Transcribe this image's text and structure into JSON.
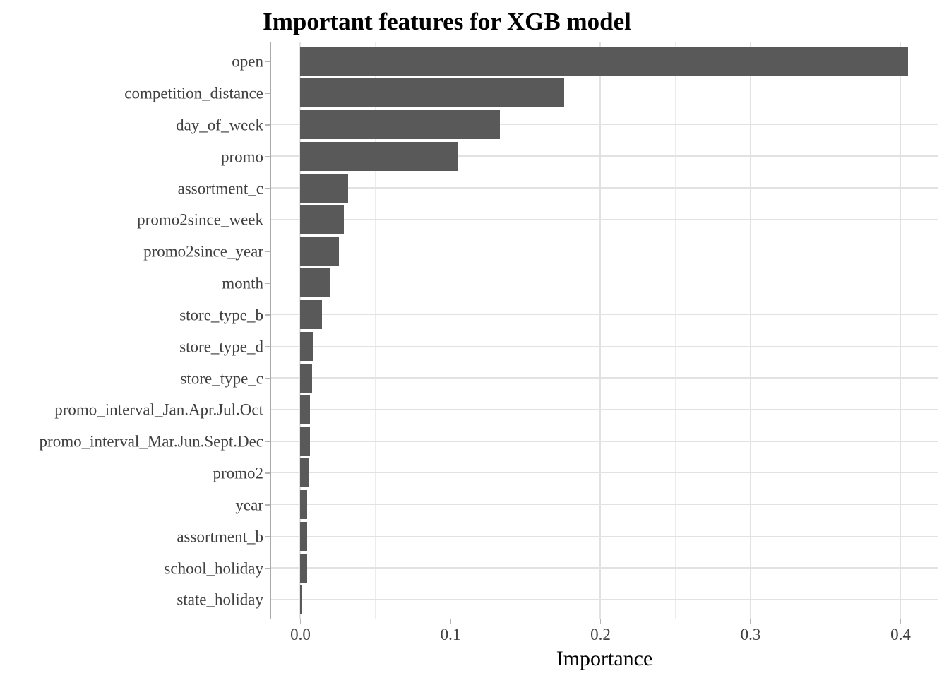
{
  "chart_data": {
    "type": "bar",
    "orientation": "horizontal",
    "title": "Important features for XGB model",
    "xlabel": "Importance",
    "ylabel": "",
    "categories": [
      "open",
      "competition_distance",
      "day_of_week",
      "promo",
      "assortment_c",
      "promo2since_week",
      "promo2since_year",
      "month",
      "store_type_b",
      "store_type_d",
      "store_type_c",
      "promo_interval_Jan.Apr.Jul.Oct",
      "promo_interval_Mar.Jun.Sept.Dec",
      "promo2",
      "year",
      "assortment_b",
      "school_holiday",
      "state_holiday"
    ],
    "values": [
      0.405,
      0.176,
      0.133,
      0.105,
      0.032,
      0.029,
      0.026,
      0.02,
      0.0145,
      0.0087,
      0.0078,
      0.0064,
      0.0064,
      0.0059,
      0.0049,
      0.0046,
      0.0045,
      0.0016
    ],
    "x_ticks": [
      0.0,
      0.1,
      0.2,
      0.3,
      0.4
    ],
    "x_tick_labels": [
      "0.0",
      "0.1",
      "0.2",
      "0.3",
      "0.4"
    ],
    "x_minor_ticks": [
      0.05,
      0.15,
      0.25,
      0.35
    ],
    "xlim": [
      -0.02,
      0.425
    ],
    "grid": true,
    "legend": false,
    "bar_color": "#595959",
    "background_color": "#ffffff"
  }
}
